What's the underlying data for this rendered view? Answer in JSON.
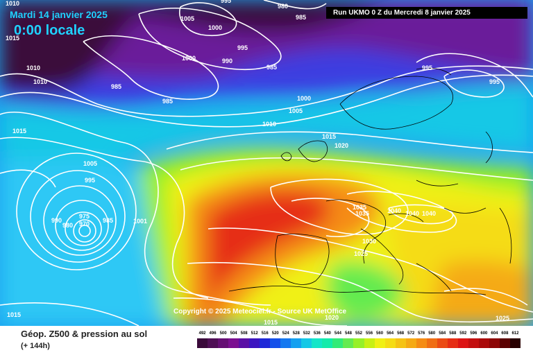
{
  "header": {
    "date": "Mardi 14 janvier 2025",
    "time": "0:00 locale",
    "run": "Run UKMO 0 Z du Mercredi 8 janvier 2025"
  },
  "copyright": "Copyright © 2025 Meteociel.fr - Source UK MetOffice",
  "footer": {
    "title": "Géop. Z500 & pression au sol",
    "step": "(+ 144h)"
  },
  "pressure_labels": [
    "1010",
    "995",
    "980",
    "985",
    "1015",
    "1005",
    "1000",
    "990",
    "1010",
    "1000",
    "995",
    "985",
    "1010",
    "985",
    "995",
    "995",
    "985",
    "1000",
    "1005",
    "1010",
    "1015",
    "1020",
    "1015",
    "1005",
    "995",
    "975",
    "970",
    "990",
    "980",
    "985",
    "1001",
    "1035",
    "1035",
    "1040",
    "1040",
    "1040",
    "1030",
    "1025",
    "1015",
    "1020",
    "1025",
    "1015"
  ],
  "scale": {
    "labels": [
      "492",
      "496",
      "500",
      "504",
      "508",
      "512",
      "516",
      "520",
      "524",
      "528",
      "532",
      "536",
      "540",
      "544",
      "548",
      "552",
      "556",
      "560",
      "564",
      "568",
      "572",
      "576",
      "580",
      "584",
      "588",
      "592",
      "596",
      "600",
      "604",
      "608",
      "612"
    ],
    "colors": [
      "#3a0a3a",
      "#4f0f55",
      "#650f73",
      "#7b0f90",
      "#5a0fa5",
      "#3c14c0",
      "#1e28d8",
      "#1450ea",
      "#1478f0",
      "#14a0f0",
      "#14c8e6",
      "#14e6c8",
      "#14ebaa",
      "#32eb78",
      "#64eb50",
      "#96f028",
      "#c8f014",
      "#f0f014",
      "#f5dc14",
      "#f5c314",
      "#f5aa14",
      "#f58c14",
      "#f06e14",
      "#eb4b14",
      "#e62d14",
      "#dc1414",
      "#c30f0f",
      "#aa0a0a",
      "#8c0505",
      "#5a0000",
      "#280000"
    ]
  }
}
